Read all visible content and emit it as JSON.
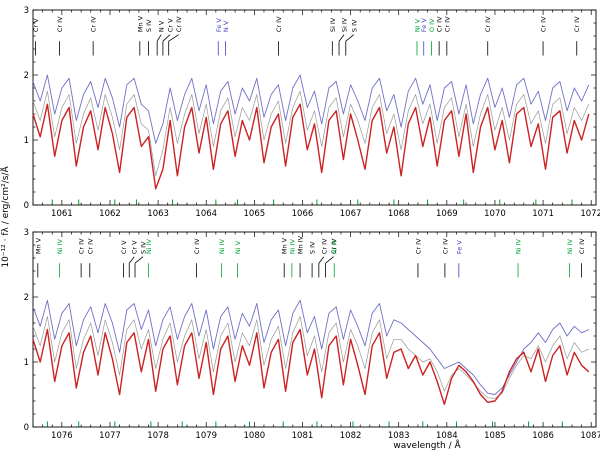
{
  "axes": {
    "xlabel": "wavelength / Å",
    "ylabel": "10⁻¹² · fλ / erg/cm²/s/Å",
    "yticks": [
      0,
      1,
      2,
      3
    ],
    "frame_color": "#000000"
  },
  "chart_data": [
    {
      "type": "line",
      "panel": "upper",
      "title": "",
      "xlabel": "",
      "ylabel": "10^-12 f_lambda / erg/cm2/s/A",
      "xlim": [
        1060.4,
        1072.1
      ],
      "ylim": [
        0,
        3
      ],
      "xticks": [
        1061,
        1062,
        1063,
        1064,
        1065,
        1066,
        1067,
        1068,
        1069,
        1070,
        1071,
        1072
      ],
      "x_start": 1060.4,
      "x_step": 0.15,
      "series": [
        {
          "name": "model-gray",
          "color": "#999999",
          "width": 0.7,
          "values": [
            1.6,
            1.3,
            1.75,
            1.05,
            1.5,
            1.7,
            0.95,
            1.4,
            1.65,
            1.15,
            1.7,
            1.35,
            0.85,
            1.55,
            1.7,
            1.25,
            1.15,
            0.45,
            0.85,
            1.5,
            0.95,
            1.4,
            1.7,
            1.1,
            1.55,
            0.9,
            1.45,
            1.65,
            1.05,
            1.5,
            1.3,
            1.7,
            1.0,
            1.4,
            1.6,
            0.95,
            1.5,
            1.75,
            1.15,
            1.45,
            0.9,
            1.5,
            1.65,
            1.05,
            1.55,
            1.3,
            0.95,
            1.5,
            1.7,
            1.1,
            1.4,
            0.85,
            1.45,
            1.7,
            1.25,
            1.55,
            0.95,
            1.5,
            1.65,
            1.05,
            1.55,
            0.9,
            1.4,
            1.7,
            1.15,
            1.5,
            1.0,
            1.55,
            1.7,
            1.25,
            1.45,
            0.95,
            1.55,
            1.65,
            1.1,
            1.5,
            1.3,
            1.55
          ]
        },
        {
          "name": "model-blue",
          "color": "#7070c8",
          "width": 0.9,
          "values": [
            1.9,
            1.6,
            2.0,
            1.4,
            1.8,
            1.95,
            1.3,
            1.7,
            1.9,
            1.5,
            1.95,
            1.65,
            1.2,
            1.85,
            1.95,
            1.55,
            1.45,
            0.95,
            1.25,
            1.8,
            1.3,
            1.7,
            1.95,
            1.45,
            1.85,
            1.25,
            1.75,
            1.9,
            1.4,
            1.8,
            1.6,
            1.95,
            1.35,
            1.7,
            1.85,
            1.3,
            1.8,
            2.0,
            1.5,
            1.75,
            1.25,
            1.8,
            1.9,
            1.4,
            1.85,
            1.6,
            1.3,
            1.8,
            1.95,
            1.45,
            1.7,
            1.2,
            1.75,
            1.95,
            1.55,
            1.85,
            1.3,
            1.8,
            1.9,
            1.4,
            1.85,
            1.25,
            1.7,
            1.95,
            1.5,
            1.8,
            1.35,
            1.85,
            1.95,
            1.55,
            1.75,
            1.3,
            1.8,
            1.9,
            1.45,
            1.8,
            1.6,
            1.85
          ]
        },
        {
          "name": "observation-red",
          "color": "#cc2222",
          "width": 1.4,
          "values": [
            1.4,
            1.05,
            1.55,
            0.75,
            1.3,
            1.5,
            0.6,
            1.2,
            1.45,
            0.85,
            1.5,
            1.1,
            0.5,
            1.35,
            1.5,
            0.9,
            1.05,
            0.25,
            0.55,
            1.3,
            0.45,
            1.2,
            1.5,
            0.8,
            1.35,
            0.55,
            1.25,
            1.45,
            0.75,
            1.3,
            1.0,
            1.5,
            0.65,
            1.2,
            1.4,
            0.6,
            1.35,
            1.55,
            0.85,
            1.25,
            0.5,
            1.3,
            1.45,
            0.7,
            1.4,
            1.0,
            0.55,
            1.3,
            1.5,
            0.8,
            1.2,
            0.45,
            1.25,
            1.5,
            0.9,
            1.35,
            0.6,
            1.3,
            1.45,
            0.75,
            1.4,
            0.5,
            1.2,
            1.5,
            0.85,
            1.3,
            0.65,
            1.4,
            1.5,
            0.9,
            1.25,
            0.55,
            1.35,
            1.45,
            0.8,
            1.3,
            1.0,
            1.4
          ]
        }
      ],
      "line_ids": [
        {
          "wl": 1060.45,
          "label": "Cr V",
          "color": "#000000"
        },
        {
          "wl": 1060.95,
          "label": "Cr IV",
          "color": "#000000"
        },
        {
          "wl": 1061.65,
          "label": "Cr IV",
          "color": "#000000"
        },
        {
          "wl": 1062.62,
          "label": "Mn V",
          "color": "#000000"
        },
        {
          "wl": 1062.8,
          "label": "S IV",
          "color": "#000000"
        },
        {
          "wl": 1062.98,
          "label": "N V",
          "color": "#000000",
          "dx": 4
        },
        {
          "wl": 1063.1,
          "label": "Cr V",
          "color": "#000000",
          "dx": 7
        },
        {
          "wl": 1063.22,
          "label": "Cr IV",
          "color": "#000000",
          "dx": 10
        },
        {
          "wl": 1064.25,
          "label": "Fe V",
          "color": "#4040c0"
        },
        {
          "wl": 1064.4,
          "label": "N V",
          "color": "#4040c0"
        },
        {
          "wl": 1065.5,
          "label": "Cr IV",
          "color": "#000000"
        },
        {
          "wl": 1066.62,
          "label": "Si IV",
          "color": "#000000"
        },
        {
          "wl": 1066.76,
          "label": "Si IV",
          "color": "#000000",
          "dx": 5
        },
        {
          "wl": 1066.9,
          "label": "S IV",
          "color": "#000000",
          "dx": 8
        },
        {
          "wl": 1068.38,
          "label": "Ni V",
          "color": "#00a033"
        },
        {
          "wl": 1068.52,
          "label": "Fe V",
          "color": "#4040c0"
        },
        {
          "wl": 1068.68,
          "label": "O IV",
          "color": "#00a033"
        },
        {
          "wl": 1068.84,
          "label": "Cr IV",
          "color": "#000000"
        },
        {
          "wl": 1069.0,
          "label": "Cr IV",
          "color": "#000000"
        },
        {
          "wl": 1069.85,
          "label": "Cr IV",
          "color": "#000000"
        },
        {
          "wl": 1071.0,
          "label": "Cr IV",
          "color": "#000000"
        },
        {
          "wl": 1071.7,
          "label": "Cr IV",
          "color": "#000000"
        }
      ],
      "green_axis_ticks": [
        1060.8,
        1061.35,
        1062.1,
        1062.55,
        1063.3,
        1064.2,
        1064.65,
        1065.4,
        1066.3,
        1067.15,
        1067.9,
        1068.6,
        1069.35,
        1070.1,
        1070.85,
        1071.6
      ],
      "green_tick_color": "#00a033"
    },
    {
      "type": "line",
      "panel": "lower",
      "title": "",
      "xlabel": "wavelength / Å",
      "ylabel": "10^-12 f_lambda / erg/cm2/s/A",
      "xlim": [
        1075.4,
        1087.1
      ],
      "ylim": [
        0,
        3
      ],
      "xticks": [
        1076,
        1077,
        1078,
        1079,
        1080,
        1081,
        1082,
        1083,
        1084,
        1085,
        1086,
        1087
      ],
      "x_start": 1075.4,
      "x_step": 0.15,
      "series": [
        {
          "name": "model-gray",
          "color": "#999999",
          "width": 0.7,
          "values": [
            1.55,
            1.25,
            1.7,
            1.0,
            1.45,
            1.65,
            0.9,
            1.35,
            1.6,
            1.1,
            1.65,
            1.3,
            0.8,
            1.5,
            1.65,
            1.2,
            1.5,
            0.9,
            1.35,
            1.6,
            1.0,
            1.4,
            1.65,
            1.05,
            1.5,
            0.85,
            1.4,
            1.6,
            1.0,
            1.45,
            1.25,
            1.65,
            0.95,
            1.35,
            1.55,
            0.9,
            1.45,
            1.7,
            1.1,
            1.4,
            0.85,
            1.45,
            1.6,
            1.0,
            1.5,
            1.25,
            0.9,
            1.45,
            1.65,
            1.05,
            1.35,
            1.35,
            1.2,
            1.1,
            1.0,
            1.05,
            0.85,
            0.55,
            0.8,
            0.9,
            0.8,
            0.68,
            0.55,
            0.45,
            0.44,
            0.52,
            0.75,
            0.95,
            1.1,
            1.05,
            1.25,
            1.0,
            1.25,
            1.4,
            1.05,
            1.3,
            1.15,
            1.2
          ]
        },
        {
          "name": "model-blue",
          "color": "#7070c8",
          "width": 0.9,
          "values": [
            1.85,
            1.55,
            1.95,
            1.35,
            1.75,
            1.9,
            1.25,
            1.65,
            1.85,
            1.45,
            1.9,
            1.6,
            1.15,
            1.8,
            1.9,
            1.5,
            1.8,
            1.25,
            1.65,
            1.85,
            1.35,
            1.7,
            1.9,
            1.4,
            1.8,
            1.2,
            1.7,
            1.85,
            1.35,
            1.75,
            1.55,
            1.9,
            1.3,
            1.65,
            1.8,
            1.25,
            1.75,
            1.95,
            1.45,
            1.7,
            1.2,
            1.75,
            1.85,
            1.35,
            1.8,
            1.55,
            1.25,
            1.75,
            1.9,
            1.4,
            1.65,
            1.6,
            1.5,
            1.4,
            1.3,
            1.2,
            1.05,
            0.9,
            0.95,
            1.0,
            0.9,
            0.8,
            0.65,
            0.52,
            0.5,
            0.6,
            0.8,
            1.0,
            1.2,
            1.3,
            1.45,
            1.3,
            1.5,
            1.6,
            1.4,
            1.55,
            1.45,
            1.5
          ]
        },
        {
          "name": "observation-red",
          "color": "#cc2222",
          "width": 1.4,
          "values": [
            1.35,
            1.0,
            1.5,
            0.7,
            1.25,
            1.45,
            0.6,
            1.15,
            1.4,
            0.8,
            1.45,
            1.05,
            0.5,
            1.3,
            1.45,
            0.85,
            1.35,
            0.55,
            1.2,
            1.4,
            0.65,
            1.25,
            1.45,
            0.75,
            1.3,
            0.5,
            1.2,
            1.4,
            0.7,
            1.25,
            0.95,
            1.45,
            0.6,
            1.15,
            1.35,
            0.55,
            1.3,
            1.5,
            0.8,
            1.2,
            0.45,
            1.25,
            1.4,
            0.65,
            1.35,
            0.95,
            0.5,
            1.25,
            1.45,
            0.75,
            1.15,
            1.2,
            0.9,
            1.1,
            0.8,
            1.0,
            0.7,
            0.35,
            0.75,
            0.95,
            0.85,
            0.7,
            0.5,
            0.38,
            0.4,
            0.55,
            0.85,
            1.05,
            1.15,
            0.85,
            1.2,
            0.7,
            1.1,
            1.25,
            0.8,
            1.15,
            0.95,
            0.85
          ]
        }
      ],
      "line_ids": [
        {
          "wl": 1075.5,
          "label": "Mn V",
          "color": "#000000"
        },
        {
          "wl": 1075.95,
          "label": "Ni IV",
          "color": "#00a033"
        },
        {
          "wl": 1076.4,
          "label": "Cr IV",
          "color": "#000000"
        },
        {
          "wl": 1076.58,
          "label": "Cr IV",
          "color": "#000000"
        },
        {
          "wl": 1077.28,
          "label": "Cr V",
          "color": "#000000"
        },
        {
          "wl": 1077.4,
          "label": "Cr V",
          "color": "#000000",
          "dx": 5
        },
        {
          "wl": 1077.52,
          "label": "S IV",
          "color": "#000000",
          "dx": 8
        },
        {
          "wl": 1077.8,
          "label": "Ni IV",
          "color": "#00a033"
        },
        {
          "wl": 1078.8,
          "label": "Cr IV",
          "color": "#000000"
        },
        {
          "wl": 1079.32,
          "label": "Ni IV",
          "color": "#00a033"
        },
        {
          "wl": 1079.65,
          "label": "Ni V",
          "color": "#00a033"
        },
        {
          "wl": 1080.62,
          "label": "Mn V",
          "color": "#000000"
        },
        {
          "wl": 1080.78,
          "label": "Ni IV",
          "color": "#00a033"
        },
        {
          "wl": 1080.95,
          "label": "Mn IV",
          "color": "#000000"
        },
        {
          "wl": 1081.2,
          "label": "S IV",
          "color": "#000000"
        },
        {
          "wl": 1081.34,
          "label": "Cr IV",
          "color": "#000000",
          "dx": 5
        },
        {
          "wl": 1081.48,
          "label": "Cr IV",
          "color": "#000000",
          "dx": 8
        },
        {
          "wl": 1081.66,
          "label": "Ni IV",
          "color": "#00a033"
        },
        {
          "wl": 1083.4,
          "label": "Cr IV",
          "color": "#000000"
        },
        {
          "wl": 1083.96,
          "label": "Cr IV",
          "color": "#000000"
        },
        {
          "wl": 1084.25,
          "label": "Fe V",
          "color": "#4040c0"
        },
        {
          "wl": 1085.48,
          "label": "Ni IV",
          "color": "#00a033"
        },
        {
          "wl": 1086.55,
          "label": "Ni IV",
          "color": "#00a033"
        },
        {
          "wl": 1086.8,
          "label": "Cr IV",
          "color": "#000000"
        }
      ],
      "green_axis_ticks": [
        1075.7,
        1076.35,
        1077.1,
        1077.85,
        1078.5,
        1079.2,
        1079.9,
        1080.6,
        1081.3,
        1082.05,
        1082.8,
        1083.5,
        1084.2,
        1084.95,
        1085.7,
        1086.4
      ],
      "green_tick_color": "#00a033"
    }
  ]
}
